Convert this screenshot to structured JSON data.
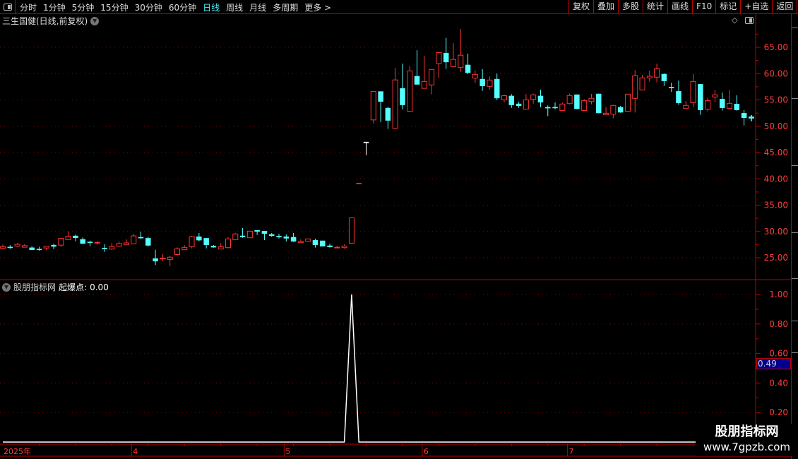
{
  "toolbar": {
    "periods": [
      "分时",
      "1分钟",
      "5分钟",
      "15分钟",
      "30分钟",
      "60分钟",
      "日线",
      "周线",
      "月线",
      "多周期",
      "更多 >"
    ],
    "active_period": "日线",
    "buttons": [
      "复权",
      "叠加",
      "多股",
      "统计",
      "画线",
      "F10",
      "标记",
      "+自选",
      "返回"
    ]
  },
  "main": {
    "title": "三生国健(日线,前复权)",
    "icons": [
      "chevron-down-icon",
      "diamond-icon",
      "panel-toggle-icon"
    ]
  },
  "indicator": {
    "source": "股朋指标网",
    "label": "起爆点:",
    "value": "0.00",
    "crosshair_value": "0.49"
  },
  "watermark": {
    "name": "股朋指标网",
    "url": "www.7gpzb.com"
  },
  "colors": {
    "up": "#ff3232",
    "down": "#54ffff",
    "axis": "#ff3c3c",
    "grid": "#8b0000",
    "border": "#c00000",
    "indicator_line": "#ffffff"
  },
  "chart_data": [
    {
      "type": "candlestick",
      "yticks": [
        "25.00",
        "30.00",
        "35.00",
        "40.00",
        "45.00",
        "50.00",
        "55.00",
        "60.00",
        "65.00"
      ],
      "ylim": [
        21.5,
        70
      ],
      "xticks": [
        {
          "index": 0,
          "label": "2025年"
        },
        {
          "index": 18,
          "label": "4"
        },
        {
          "index": 39,
          "label": "5"
        },
        {
          "index": 58,
          "label": "6"
        },
        {
          "index": 78,
          "label": "7"
        }
      ],
      "grid": true,
      "ohlc": [
        [
          26.8,
          27.5,
          26.8,
          27.1
        ],
        [
          27.05,
          27.4,
          26.7,
          26.95
        ],
        [
          27.2,
          27.8,
          27.1,
          27.55
        ],
        [
          27.0,
          27.6,
          26.95,
          27.3
        ],
        [
          26.9,
          27.2,
          26.5,
          26.5
        ],
        [
          26.65,
          27.1,
          26.35,
          26.6
        ],
        [
          26.85,
          27.2,
          26.4,
          27.2
        ],
        [
          27.4,
          27.7,
          26.65,
          27.15
        ],
        [
          27.4,
          28.75,
          27.05,
          28.7
        ],
        [
          28.45,
          30.05,
          28.4,
          29.1
        ],
        [
          29.15,
          29.4,
          28.13,
          28.8
        ],
        [
          28.5,
          28.85,
          27.6,
          27.7
        ],
        [
          28.0,
          28.26,
          27.2,
          27.85
        ],
        [
          27.85,
          28.2,
          27.45,
          27.92
        ],
        [
          26.85,
          27.55,
          26.1,
          26.8
        ],
        [
          26.65,
          27.77,
          26.5,
          27.1
        ],
        [
          27.2,
          28.1,
          27.19,
          27.7
        ],
        [
          27.46,
          28.5,
          27.46,
          27.82
        ],
        [
          27.65,
          29.56,
          27.64,
          29.15
        ],
        [
          28.9,
          29.96,
          28.62,
          28.85
        ],
        [
          28.7,
          28.98,
          27.15,
          27.35
        ],
        [
          24.85,
          26.52,
          23.66,
          24.35
        ],
        [
          24.85,
          25.67,
          24.33,
          24.93
        ],
        [
          24.65,
          25.36,
          23.43,
          25.1
        ],
        [
          25.6,
          26.97,
          25.45,
          26.7
        ],
        [
          26.52,
          27.37,
          26.5,
          26.97
        ],
        [
          27.1,
          29.16,
          26.79,
          29.0
        ],
        [
          29.0,
          29.7,
          28.13,
          28.35
        ],
        [
          28.7,
          28.71,
          26.79,
          27.46
        ],
        [
          27.23,
          27.41,
          26.92,
          27.0
        ],
        [
          26.65,
          27.77,
          26.6,
          27.1
        ],
        [
          26.92,
          28.98,
          26.79,
          28.58
        ],
        [
          28.44,
          29.7,
          28.4,
          29.52
        ],
        [
          29.16,
          30.64,
          28.8,
          28.94
        ],
        [
          28.8,
          30.14,
          28.8,
          30.05
        ],
        [
          30.23,
          30.23,
          29.34,
          30.0
        ],
        [
          30.05,
          30.1,
          28.35,
          29.6
        ],
        [
          29.43,
          29.7,
          28.98,
          29.2
        ],
        [
          29.1,
          29.56,
          28.67,
          29.05
        ],
        [
          29.0,
          29.43,
          28.09,
          28.7
        ],
        [
          28.9,
          29.7,
          28.0,
          28.13
        ],
        [
          27.86,
          28.49,
          27.86,
          28.09
        ],
        [
          28.13,
          28.58,
          28.13,
          28.58
        ],
        [
          28.31,
          28.62,
          26.92,
          27.46
        ],
        [
          28.22,
          28.22,
          27.19,
          27.19
        ],
        [
          27.28,
          27.68,
          26.92,
          27.06
        ],
        [
          26.92,
          27.28,
          26.92,
          27.0
        ],
        [
          26.92,
          27.55,
          26.74,
          27.23
        ],
        [
          27.77,
          32.7,
          27.77,
          32.6
        ],
        [
          39.2,
          39.2,
          39.2,
          39.2
        ],
        [
          47.0,
          47.0,
          44.5,
          47.0
        ],
        [
          51.2,
          56.6,
          50.55,
          56.6
        ],
        [
          56.6,
          56.6,
          50.8,
          54.7
        ],
        [
          53.45,
          53.7,
          49.5,
          51.1
        ],
        [
          49.6,
          61.1,
          49.6,
          58.8
        ],
        [
          57.2,
          61.9,
          53.2,
          54.05
        ],
        [
          52.85,
          61.45,
          52.85,
          60.5
        ],
        [
          59.5,
          64.45,
          57.95,
          57.95
        ],
        [
          57.2,
          63.4,
          57.17,
          58.5
        ],
        [
          57.85,
          60.8,
          56.05,
          60.8
        ],
        [
          61.9,
          64.1,
          59.15,
          64.0
        ],
        [
          63.9,
          66.8,
          60.9,
          62.2
        ],
        [
          61.3,
          65.8,
          61.3,
          62.7
        ],
        [
          61.15,
          68.5,
          60.35,
          63.5
        ],
        [
          61.65,
          63.8,
          59.9,
          60.2
        ],
        [
          59.15,
          60.57,
          58.2,
          59.85
        ],
        [
          58.95,
          60.84,
          56.72,
          57.65
        ],
        [
          57.57,
          59.45,
          57.0,
          58.78
        ],
        [
          58.95,
          60.0,
          54.98,
          55.35
        ],
        [
          55.0,
          56.0,
          54.53,
          55.8
        ],
        [
          55.75,
          56.1,
          53.5,
          54.05
        ],
        [
          54.25,
          54.62,
          53.5,
          53.9
        ],
        [
          53.25,
          56.1,
          53.23,
          55.0
        ],
        [
          55.1,
          56.19,
          54.3,
          55.95
        ],
        [
          55.75,
          56.95,
          53.63,
          54.55
        ],
        [
          53.6,
          53.95,
          51.9,
          53.55
        ],
        [
          53.62,
          54.53,
          53.23,
          53.58
        ],
        [
          52.97,
          54.5,
          52.97,
          54.22
        ],
        [
          54.3,
          56.2,
          54.17,
          55.83
        ],
        [
          56.0,
          56.0,
          53.2,
          53.32
        ],
        [
          52.97,
          55.15,
          52.97,
          54.88
        ],
        [
          54.7,
          56.14,
          54.17,
          55.3
        ],
        [
          56.14,
          56.2,
          52.43,
          52.52
        ],
        [
          52.2,
          53.6,
          52.2,
          52.47
        ],
        [
          52.3,
          54.1,
          51.5,
          53.95
        ],
        [
          53.6,
          53.86,
          52.56,
          52.65
        ],
        [
          52.83,
          56.1,
          52.7,
          56.1
        ],
        [
          55.3,
          60.66,
          52.6,
          59.6
        ],
        [
          56.9,
          59.77,
          56.9,
          59.18
        ],
        [
          59.18,
          60.57,
          58.47,
          59.5
        ],
        [
          59.32,
          61.9,
          58.33,
          60.93
        ],
        [
          59.9,
          60.03,
          57.66,
          58.6
        ],
        [
          57.45,
          58.29,
          56.54,
          57.4
        ],
        [
          56.63,
          58.69,
          54.08,
          54.44
        ],
        [
          53.41,
          54.8,
          53.41,
          53.95
        ],
        [
          54.48,
          59.9,
          53.63,
          58.51
        ],
        [
          57.97,
          57.97,
          52.16,
          53.1
        ],
        [
          53.23,
          55.42,
          52.83,
          54.88
        ],
        [
          55.56,
          56.95,
          54.53,
          55.96
        ],
        [
          55.15,
          56.4,
          52.97,
          53.5
        ],
        [
          53.37,
          56.95,
          53.23,
          54.35
        ],
        [
          54.22,
          55.87,
          52.97,
          53.1
        ],
        [
          52.47,
          53.05,
          50.15,
          51.62
        ],
        [
          51.8,
          52.1,
          50.9,
          51.7
        ]
      ]
    },
    {
      "type": "line",
      "series": [
        {
          "name": "起爆点",
          "values": [
            0,
            0,
            0,
            0,
            0,
            0,
            0,
            0,
            0,
            0,
            0,
            0,
            0,
            0,
            0,
            0,
            0,
            0,
            0,
            0,
            0,
            0,
            0,
            0,
            0,
            0,
            0,
            0,
            0,
            0,
            0,
            0,
            0,
            0,
            0,
            0,
            0,
            0,
            0,
            0,
            0,
            0,
            0,
            0,
            0,
            0,
            0,
            0,
            1,
            0,
            0,
            0,
            0,
            0,
            0,
            0,
            0,
            0,
            0,
            0,
            0,
            0,
            0,
            0,
            0,
            0,
            0,
            0,
            0,
            0,
            0,
            0,
            0,
            0,
            0,
            0,
            0,
            0,
            0,
            0,
            0,
            0,
            0,
            0,
            0,
            0,
            0,
            0,
            0,
            0,
            0,
            0,
            0,
            0,
            0,
            0,
            0,
            0,
            0,
            0,
            0,
            0,
            0,
            0
          ]
        }
      ],
      "yticks": [
        "0.20",
        "0.40",
        "0.60",
        "0.80",
        "1.00"
      ],
      "ylim": [
        0,
        1.05
      ],
      "grid": true
    }
  ]
}
